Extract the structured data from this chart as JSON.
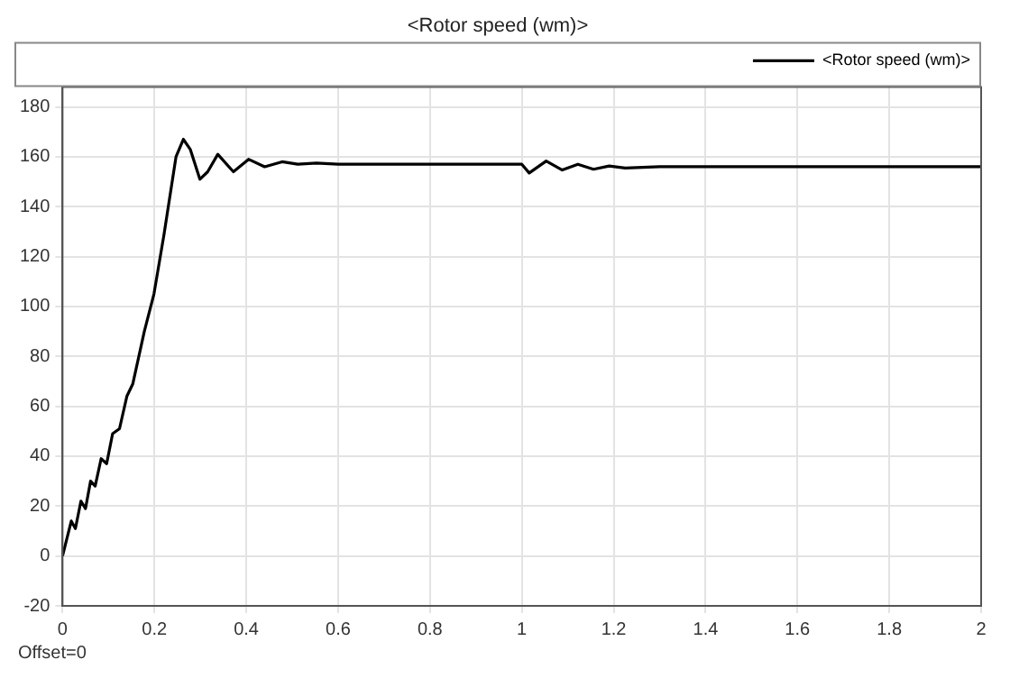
{
  "chart_data": {
    "type": "line",
    "title": "<Rotor speed (wm)>",
    "annotations": [
      "Offset=0"
    ],
    "x": [
      0,
      0.019,
      0.028,
      0.04,
      0.05,
      0.061,
      0.071,
      0.084,
      0.096,
      0.109,
      0.124,
      0.14,
      0.153,
      0.178,
      0.199,
      0.221,
      0.247,
      0.263,
      0.278,
      0.299,
      0.316,
      0.338,
      0.372,
      0.405,
      0.44,
      0.478,
      0.512,
      0.553,
      0.6,
      0.8,
      1.0,
      1.016,
      1.053,
      1.088,
      1.122,
      1.156,
      1.19,
      1.225,
      1.3,
      1.5,
      2.0
    ],
    "series": [
      {
        "name": "<Rotor speed (wm)>",
        "color": "#000000",
        "values": [
          0,
          14,
          11,
          22,
          19,
          30,
          28,
          39,
          37,
          49,
          51,
          64,
          69,
          90,
          105,
          129,
          160,
          167,
          163,
          151,
          154,
          161,
          154,
          159,
          156,
          158,
          157,
          157.5,
          157,
          157,
          157,
          153.5,
          158.3,
          154.7,
          157,
          155,
          156.3,
          155.5,
          156,
          156,
          156
        ]
      }
    ],
    "xlim": [
      0,
      2
    ],
    "ylim": [
      -20,
      188
    ],
    "xticks": [
      0,
      0.2,
      0.4,
      0.6,
      0.8,
      1,
      1.2,
      1.4,
      1.6,
      1.8,
      2
    ],
    "yticks": [
      -20,
      0,
      20,
      40,
      60,
      80,
      100,
      120,
      140,
      160,
      180
    ],
    "grid": true,
    "legend": "top right",
    "marker": "none",
    "line_style": "solid"
  }
}
